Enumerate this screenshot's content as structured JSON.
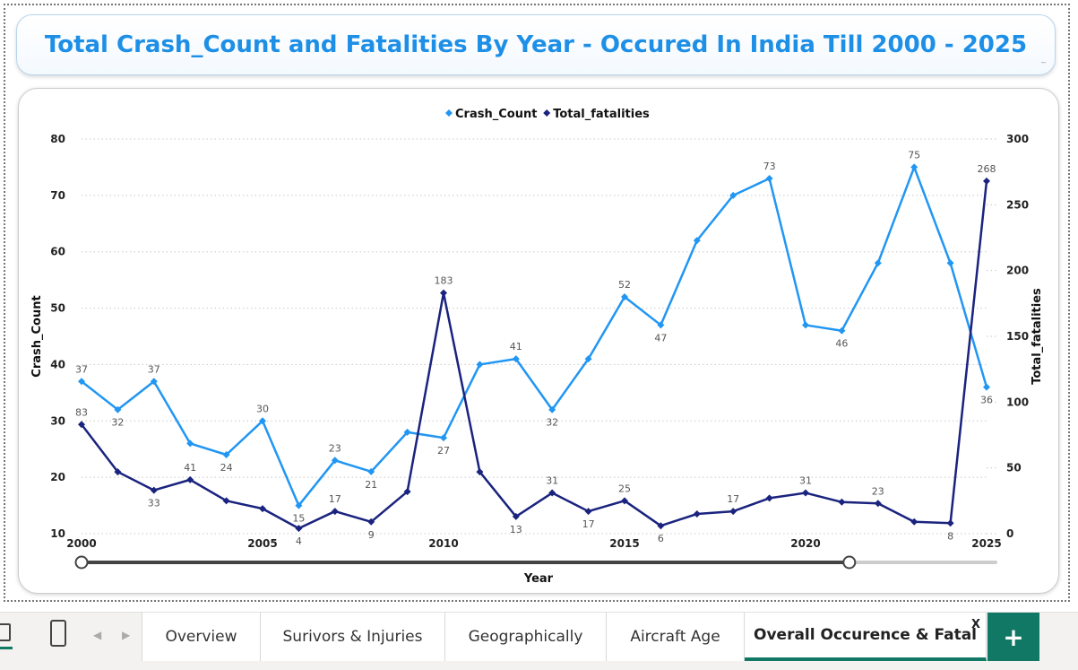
{
  "title": "Total Crash_Count and Fatalities By Year - Occured In India Till 2000 - 2025",
  "title_underscore": "_",
  "chart_data": {
    "type": "line",
    "legend_position": "top-center",
    "grid": true,
    "xlabel": "Year",
    "ylabel": "Crash_Count",
    "y2label": "Total_fatalities",
    "xlim": [
      2000,
      2025
    ],
    "ylim": [
      10,
      80
    ],
    "y2lim": [
      0,
      300
    ],
    "x": [
      2000,
      2001,
      2002,
      2003,
      2004,
      2005,
      2006,
      2007,
      2008,
      2009,
      2010,
      2011,
      2012,
      2013,
      2014,
      2015,
      2016,
      2017,
      2018,
      2019,
      2020,
      2021,
      2022,
      2023,
      2024,
      2025
    ],
    "x_ticks": [
      "2000",
      "2005",
      "2010",
      "2015",
      "2020",
      "2025"
    ],
    "y_ticks": [
      "10",
      "20",
      "30",
      "40",
      "50",
      "60",
      "70",
      "80"
    ],
    "y2_ticks": [
      "0",
      "50",
      "100",
      "150",
      "200",
      "250",
      "300"
    ],
    "series": [
      {
        "name": "Crash_Count",
        "axis": "left",
        "color": "#2196f3",
        "values": [
          37,
          32,
          37,
          26,
          24,
          30,
          15,
          23,
          21,
          28,
          27,
          40,
          41,
          32,
          41,
          52,
          47,
          62,
          70,
          73,
          47,
          46,
          58,
          75,
          58,
          36
        ],
        "labels": [
          "37",
          "32",
          "37",
          null,
          "24",
          "30",
          "15",
          "23",
          "21",
          null,
          "27",
          null,
          "41",
          "32",
          null,
          "52",
          "47",
          null,
          null,
          "73",
          null,
          "46",
          null,
          "75",
          null,
          "36"
        ]
      },
      {
        "name": "Total_fatalities",
        "axis": "right",
        "color": "#1a237e",
        "values": [
          83,
          47,
          33,
          41,
          25,
          19,
          4,
          17,
          9,
          32,
          183,
          47,
          13,
          31,
          17,
          25,
          6,
          15,
          17,
          27,
          31,
          24,
          23,
          9,
          8,
          268
        ],
        "labels": [
          "83",
          null,
          "33",
          "41",
          null,
          null,
          "4",
          "17",
          "9",
          null,
          "183",
          null,
          "13",
          "31",
          "17",
          "25",
          "6",
          null,
          "17",
          null,
          "31",
          null,
          "23",
          null,
          "8",
          "268"
        ]
      }
    ]
  },
  "slider": {
    "start_fraction": 0.0,
    "end_fraction": 0.84
  },
  "tabs": {
    "items": [
      "Overview",
      "Surivors & Injuries",
      "Geographically",
      "Aircraft Age",
      "Overall Occurence & Fatal"
    ],
    "active_index": 4,
    "close_label": "X",
    "add_label": "+",
    "prev_arrow": "◀",
    "next_arrow": "▶"
  }
}
